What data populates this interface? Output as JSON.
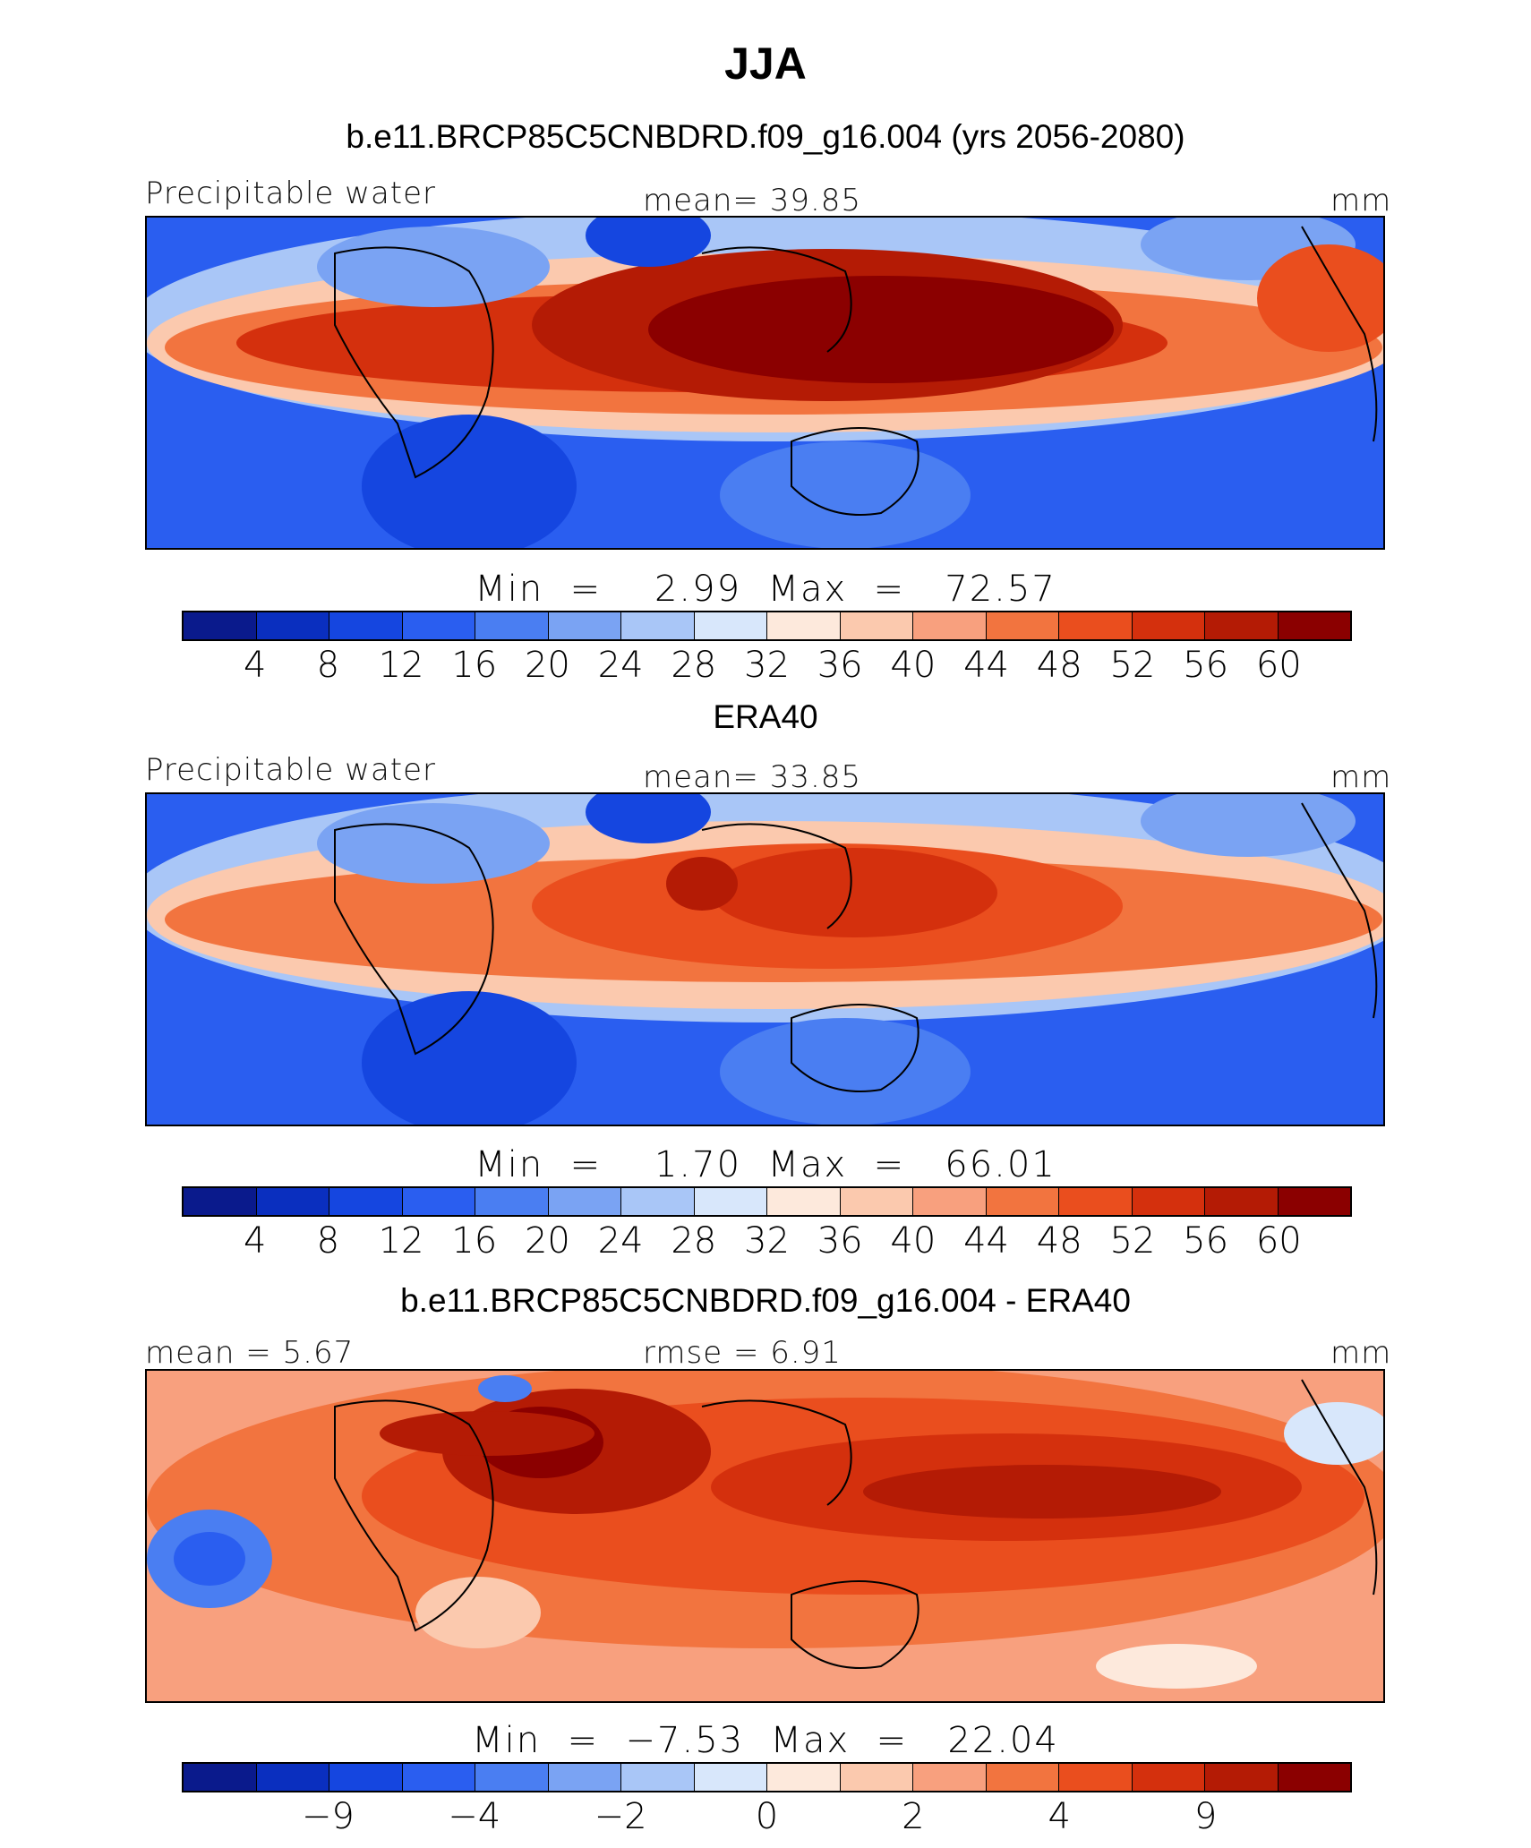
{
  "title": "JJA",
  "units": "mm",
  "colors": [
    "#0a1a8c",
    "#0a2fbf",
    "#1546e0",
    "#2a5ef0",
    "#4a7ef2",
    "#7aa3f3",
    "#a9c6f7",
    "#d8e7fb",
    "#fde9dc",
    "#fbc9ae",
    "#f8a07e",
    "#f2743f",
    "#ea4e1e",
    "#d4300d",
    "#b41b05",
    "#8b0000"
  ],
  "panels": [
    {
      "subtitle": "b.e11.BRCP85C5CNBDRD.f09_g16.004 (yrs 2056-2080)",
      "left_label": "Precipitable water",
      "center_label": "mean=   39.85",
      "right_label": "mm",
      "minmax": "Min  =    2.99  Max  =   72.57",
      "tick_labels": [
        "4",
        "8",
        "12",
        "16",
        "20",
        "24",
        "28",
        "32",
        "36",
        "40",
        "44",
        "48",
        "52",
        "56",
        "60"
      ]
    },
    {
      "subtitle": "ERA40",
      "left_label": "Precipitable water",
      "center_label": "mean=   33.85",
      "right_label": "mm",
      "minmax": "Min  =    1.70  Max  =   66.01",
      "tick_labels": [
        "4",
        "8",
        "12",
        "16",
        "20",
        "24",
        "28",
        "32",
        "36",
        "40",
        "44",
        "48",
        "52",
        "56",
        "60"
      ]
    },
    {
      "subtitle": "b.e11.BRCP85C5CNBDRD.f09_g16.004 - ERA40",
      "left_label": "mean =    5.67",
      "center_label": "rmse =    6.91",
      "right_label": "mm",
      "minmax": "Min  =  −7.53  Max  =   22.04",
      "tick_labels": [
        "−9",
        "−4",
        "−2",
        "0",
        "2",
        "4",
        "9"
      ]
    }
  ]
}
